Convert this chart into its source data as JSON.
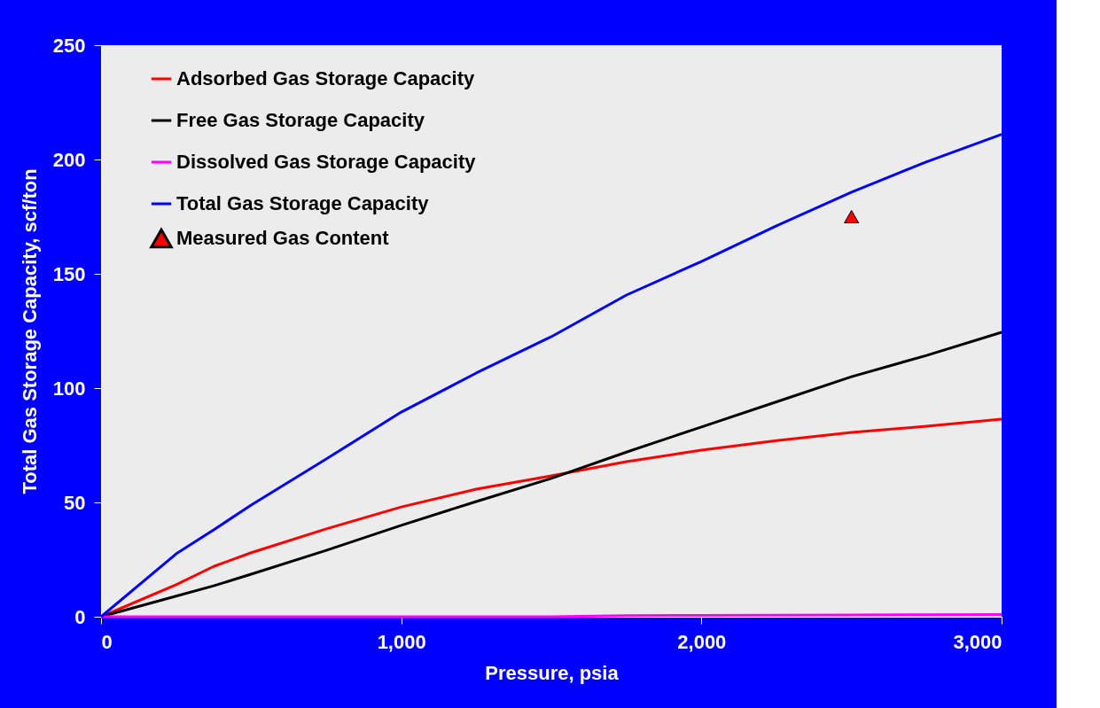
{
  "chart_data": {
    "type": "line",
    "xlabel": "Pressure, psia",
    "ylabel": "Total Gas Storage Capacity, scf/ton",
    "x": [
      0,
      250,
      375,
      500,
      750,
      1000,
      1250,
      1500,
      1750,
      2000,
      2250,
      2500,
      2750,
      3000
    ],
    "series": [
      {
        "name": "Adsorbed Gas Storage Capacity",
        "color": "#ff0000",
        "values": [
          0,
          14,
          22,
          28,
          38.4,
          48,
          55.8,
          61.6,
          67.8,
          72.9,
          77,
          80.6,
          83.3,
          86.4
        ]
      },
      {
        "name": "Free Gas Storage Capacity",
        "color": "#000000",
        "values": [
          0,
          9,
          13.5,
          18.6,
          29,
          40,
          50.4,
          60.5,
          72,
          83,
          94,
          105,
          114.3,
          124.4
        ]
      },
      {
        "name": "Dissolved Gas Storage Capacity",
        "color": "#ff00ff",
        "values": [
          0,
          0,
          0,
          0,
          0,
          0,
          0,
          0,
          0.5,
          0.6,
          0.7,
          0.8,
          0.9,
          1
        ]
      },
      {
        "name": "Total Gas Storage Capacity",
        "color": "#0000ff",
        "values": [
          0,
          27.5,
          38,
          48.8,
          69,
          89.5,
          106.6,
          122.5,
          140.7,
          155.4,
          171,
          185.7,
          199,
          211
        ]
      },
      {
        "name": "Measured Gas Content",
        "type": "scatter",
        "marker": "triangle",
        "color": "#ff0000",
        "x": [
          2500
        ],
        "values": [
          175
        ]
      }
    ],
    "xlim": [
      0,
      3000
    ],
    "xticks": [
      0,
      {
        "value": 1000,
        "label": "1,000"
      },
      {
        "value": 2000,
        "label": "2,000"
      },
      {
        "value": 3000,
        "label": "3,000"
      }
    ],
    "ylim": [
      0,
      250
    ],
    "yticks": [
      0,
      50,
      100,
      150,
      200,
      250
    ],
    "legend": "top left",
    "grid": false
  }
}
